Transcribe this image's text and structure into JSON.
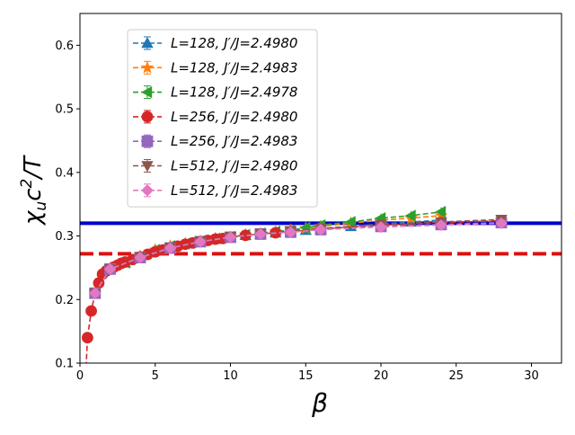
{
  "chart_data": {
    "type": "line",
    "xlabel": "β",
    "ylabel": "χ_u c²/T",
    "xlim": [
      0,
      32
    ],
    "ylim": [
      0.1,
      0.65
    ],
    "x_ticks": [
      0,
      5,
      10,
      15,
      20,
      25,
      30
    ],
    "y_ticks": [
      0.1,
      0.2,
      0.3,
      0.4,
      0.5,
      0.6
    ],
    "legend_position": "upper-left",
    "grid": false,
    "reference_lines": [
      {
        "y": 0.32,
        "color": "#0000cc",
        "style": "solid"
      },
      {
        "y": 0.272,
        "color": "#dd1111",
        "style": "dashed"
      }
    ],
    "series": [
      {
        "name": "L=128, J′/J=2.4980",
        "color": "#1f77b4",
        "marker": "triangle-up",
        "x": [
          1,
          2,
          3,
          4,
          5,
          6,
          7,
          8,
          9,
          10,
          11,
          12,
          13,
          14,
          15,
          16,
          18,
          20,
          22,
          24
        ],
        "y": [
          0.21,
          0.248,
          0.258,
          0.268,
          0.278,
          0.284,
          0.288,
          0.292,
          0.296,
          0.298,
          0.301,
          0.303,
          0.305,
          0.307,
          0.309,
          0.311,
          0.315,
          0.319,
          0.322,
          0.325
        ]
      },
      {
        "name": "L=128, J′/J=2.4983",
        "color": "#ff7f0e",
        "marker": "star",
        "x": [
          1,
          2,
          3,
          4,
          5,
          6,
          7,
          8,
          9,
          10,
          11,
          12,
          13,
          14,
          15,
          16,
          18,
          20,
          22,
          24
        ],
        "y": [
          0.21,
          0.248,
          0.258,
          0.268,
          0.278,
          0.284,
          0.288,
          0.292,
          0.296,
          0.298,
          0.302,
          0.304,
          0.307,
          0.309,
          0.312,
          0.315,
          0.32,
          0.325,
          0.328,
          0.332
        ]
      },
      {
        "name": "L=128, J′/J=2.4978",
        "color": "#2ca02c",
        "marker": "triangle-left",
        "x": [
          1,
          2,
          3,
          4,
          5,
          6,
          7,
          8,
          9,
          10,
          11,
          12,
          13,
          14,
          15,
          16,
          18,
          20,
          22,
          24
        ],
        "y": [
          0.21,
          0.248,
          0.258,
          0.268,
          0.278,
          0.284,
          0.288,
          0.292,
          0.296,
          0.299,
          0.302,
          0.304,
          0.307,
          0.309,
          0.313,
          0.317,
          0.322,
          0.328,
          0.332,
          0.338
        ]
      },
      {
        "name": "L=256, J′/J=2.4980",
        "color": "#d62728",
        "marker": "circle",
        "x": [
          0.5,
          0.75,
          1,
          1.25,
          1.5,
          1.75,
          2,
          2.25,
          2.5,
          2.75,
          3,
          3.5,
          4,
          4.5,
          5,
          5.5,
          6,
          6.5,
          7,
          7.5,
          8,
          8.5,
          9,
          9.5,
          10,
          11,
          12,
          13,
          14,
          16,
          20,
          24,
          28
        ],
        "y": [
          0.14,
          0.182,
          0.21,
          0.226,
          0.24,
          0.245,
          0.248,
          0.251,
          0.254,
          0.257,
          0.259,
          0.263,
          0.267,
          0.271,
          0.275,
          0.278,
          0.281,
          0.284,
          0.287,
          0.289,
          0.291,
          0.293,
          0.295,
          0.296,
          0.298,
          0.301,
          0.303,
          0.305,
          0.307,
          0.311,
          0.317,
          0.321,
          0.324
        ]
      },
      {
        "name": "L=256, J′/J=2.4983",
        "color": "#9467bd",
        "marker": "square",
        "x": [
          1,
          2,
          4,
          6,
          8,
          10,
          12,
          14,
          16,
          20,
          24,
          28
        ],
        "y": [
          0.21,
          0.248,
          0.266,
          0.281,
          0.291,
          0.298,
          0.303,
          0.306,
          0.31,
          0.315,
          0.318,
          0.321
        ]
      },
      {
        "name": "L=512, J′/J=2.4980",
        "color": "#8c564b",
        "marker": "triangle-down",
        "x": [
          1,
          2,
          4,
          6,
          8,
          10,
          12,
          14,
          16,
          20,
          24,
          28
        ],
        "y": [
          0.21,
          0.248,
          0.267,
          0.282,
          0.292,
          0.299,
          0.304,
          0.308,
          0.312,
          0.318,
          0.322,
          0.326
        ]
      },
      {
        "name": "L=512, J′/J=2.4983",
        "color": "#e377c2",
        "marker": "pentagon",
        "x": [
          1,
          2,
          4,
          6,
          8,
          10,
          12,
          14,
          16,
          20,
          24,
          28
        ],
        "y": [
          0.21,
          0.248,
          0.266,
          0.281,
          0.291,
          0.298,
          0.303,
          0.306,
          0.31,
          0.314,
          0.317,
          0.32
        ]
      }
    ]
  }
}
